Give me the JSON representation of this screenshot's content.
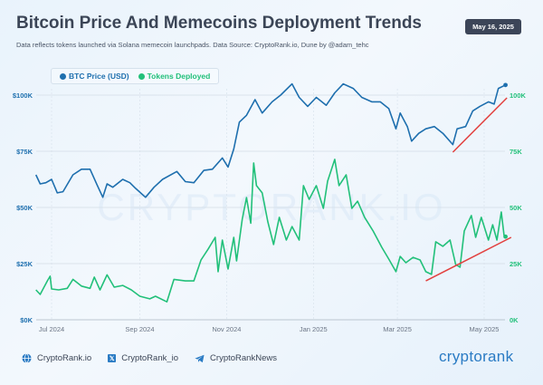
{
  "header": {
    "title": "Bitcoin Price And Memecoins Deployment Trends",
    "subtitle": "Data reflects tokens launched via Solana memecoin launchpads. Data Source: CryptoRank.io, Dune by @adam_tehc",
    "date": "May 16, 2025"
  },
  "watermark": "CRYPTORANK.IO",
  "footer": {
    "website": "CryptoRank.io",
    "x_handle": "CryptoRank_io",
    "telegram": "CryptoRankNews",
    "logo": "cryptorank",
    "icons": [
      "globe-icon",
      "x-icon",
      "telegram-icon"
    ]
  },
  "colors": {
    "btc": "#1e6fae",
    "tokens": "#22c07a",
    "trend": "#e2413f",
    "accent": "#2a7bc4"
  },
  "chart_data": {
    "type": "line",
    "title": "Bitcoin Price And Memecoins Deployment Trends",
    "legend_position": "top-left",
    "grid": true,
    "x_ticks": [
      "Jul 2024",
      "Sep 2024",
      "Nov 2024",
      "Jan 2025",
      "Mar 2025",
      "May 2025"
    ],
    "x_tick_dates": [
      "2024-07-01",
      "2024-09-01",
      "2024-11-01",
      "2025-01-01",
      "2025-03-01",
      "2025-05-01"
    ],
    "y_left": {
      "ticks": [
        "$0K",
        "$25K",
        "$50K",
        "$75K",
        "$100K"
      ],
      "range": [
        0,
        100000
      ]
    },
    "y_right": {
      "ticks": [
        "0K",
        "25K",
        "50K",
        "75K",
        "100K"
      ],
      "range": [
        0,
        100000
      ]
    },
    "series": [
      {
        "name": "BTC Price (USD)",
        "axis": "left",
        "unit": "thousands USD",
        "points": [
          [
            "2024-06-20",
            64.5
          ],
          [
            "2024-06-23",
            60.5
          ],
          [
            "2024-06-27",
            61
          ],
          [
            "2024-07-01",
            62.5
          ],
          [
            "2024-07-05",
            56.5
          ],
          [
            "2024-07-09",
            57
          ],
          [
            "2024-07-16",
            64.5
          ],
          [
            "2024-07-22",
            67
          ],
          [
            "2024-07-28",
            67
          ],
          [
            "2024-08-02",
            60
          ],
          [
            "2024-08-06",
            54.5
          ],
          [
            "2024-08-09",
            60.5
          ],
          [
            "2024-08-13",
            59
          ],
          [
            "2024-08-20",
            62.5
          ],
          [
            "2024-08-25",
            61
          ],
          [
            "2024-08-29",
            58.5
          ],
          [
            "2024-09-05",
            54.5
          ],
          [
            "2024-09-11",
            59
          ],
          [
            "2024-09-17",
            62.5
          ],
          [
            "2024-09-27",
            66
          ],
          [
            "2024-10-03",
            61.5
          ],
          [
            "2024-10-09",
            61
          ],
          [
            "2024-10-16",
            66.5
          ],
          [
            "2024-10-22",
            67
          ],
          [
            "2024-10-29",
            72
          ],
          [
            "2024-11-02",
            68
          ],
          [
            "2024-11-06",
            76
          ],
          [
            "2024-11-10",
            88
          ],
          [
            "2024-11-15",
            91
          ],
          [
            "2024-11-21",
            98
          ],
          [
            "2024-11-26",
            92
          ],
          [
            "2024-12-03",
            97
          ],
          [
            "2024-12-09",
            100
          ],
          [
            "2024-12-17",
            105
          ],
          [
            "2024-12-22",
            99
          ],
          [
            "2024-12-28",
            95
          ],
          [
            "2025-01-03",
            99
          ],
          [
            "2025-01-10",
            95.5
          ],
          [
            "2025-01-16",
            101
          ],
          [
            "2025-01-22",
            105
          ],
          [
            "2025-01-29",
            103
          ],
          [
            "2025-02-04",
            99
          ],
          [
            "2025-02-11",
            97
          ],
          [
            "2025-02-17",
            97
          ],
          [
            "2025-02-23",
            94
          ],
          [
            "2025-02-28",
            85
          ],
          [
            "2025-03-03",
            92
          ],
          [
            "2025-03-08",
            86
          ],
          [
            "2025-03-11",
            79.5
          ],
          [
            "2025-03-16",
            83
          ],
          [
            "2025-03-21",
            85
          ],
          [
            "2025-03-27",
            86
          ],
          [
            "2025-04-02",
            83
          ],
          [
            "2025-04-09",
            78
          ],
          [
            "2025-04-12",
            85
          ],
          [
            "2025-04-18",
            86
          ],
          [
            "2025-04-23",
            93
          ],
          [
            "2025-04-28",
            95
          ],
          [
            "2025-05-04",
            97
          ],
          [
            "2025-05-08",
            96
          ],
          [
            "2025-05-11",
            103
          ],
          [
            "2025-05-16",
            104.5
          ]
        ]
      },
      {
        "name": "Tokens Deployed",
        "axis": "right",
        "unit": "thousands",
        "points": [
          [
            "2024-06-20",
            13.3
          ],
          [
            "2024-06-23",
            11.3
          ],
          [
            "2024-06-28",
            17.3
          ],
          [
            "2024-06-30",
            19.4
          ],
          [
            "2024-07-01",
            13.7
          ],
          [
            "2024-07-06",
            13.3
          ],
          [
            "2024-07-12",
            14
          ],
          [
            "2024-07-16",
            18
          ],
          [
            "2024-07-22",
            15
          ],
          [
            "2024-07-28",
            14
          ],
          [
            "2024-07-31",
            19
          ],
          [
            "2024-08-04",
            13.3
          ],
          [
            "2024-08-09",
            20
          ],
          [
            "2024-08-14",
            14.5
          ],
          [
            "2024-08-20",
            15.3
          ],
          [
            "2024-08-26",
            13.3
          ],
          [
            "2024-09-01",
            10.5
          ],
          [
            "2024-09-08",
            9.3
          ],
          [
            "2024-09-12",
            10.5
          ],
          [
            "2024-09-20",
            8
          ],
          [
            "2024-09-25",
            18
          ],
          [
            "2024-10-03",
            17.3
          ],
          [
            "2024-10-09",
            17.3
          ],
          [
            "2024-10-14",
            26.6
          ],
          [
            "2024-10-19",
            31.5
          ],
          [
            "2024-10-24",
            36.7
          ],
          [
            "2024-10-26",
            21.4
          ],
          [
            "2024-10-29",
            35.5
          ],
          [
            "2024-11-02",
            22.6
          ],
          [
            "2024-11-06",
            36.7
          ],
          [
            "2024-11-08",
            26.2
          ],
          [
            "2024-11-12",
            44.8
          ],
          [
            "2024-11-15",
            54.4
          ],
          [
            "2024-11-18",
            43
          ],
          [
            "2024-11-20",
            69.8
          ],
          [
            "2024-11-22",
            59.7
          ],
          [
            "2024-11-26",
            56.5
          ],
          [
            "2024-11-30",
            43.5
          ],
          [
            "2024-12-04",
            33.5
          ],
          [
            "2024-12-08",
            45.6
          ],
          [
            "2024-12-13",
            35.5
          ],
          [
            "2024-12-17",
            41.5
          ],
          [
            "2024-12-22",
            35.5
          ],
          [
            "2024-12-25",
            59.7
          ],
          [
            "2024-12-29",
            53.6
          ],
          [
            "2025-01-03",
            59.7
          ],
          [
            "2025-01-08",
            49.6
          ],
          [
            "2025-01-11",
            61.7
          ],
          [
            "2025-01-16",
            71.4
          ],
          [
            "2025-01-19",
            59.7
          ],
          [
            "2025-01-24",
            64.5
          ],
          [
            "2025-01-28",
            49.6
          ],
          [
            "2025-02-01",
            52.8
          ],
          [
            "2025-02-06",
            45.6
          ],
          [
            "2025-02-12",
            39.5
          ],
          [
            "2025-02-18",
            32.3
          ],
          [
            "2025-02-23",
            27
          ],
          [
            "2025-02-28",
            21.4
          ],
          [
            "2025-03-03",
            28.2
          ],
          [
            "2025-03-07",
            25.4
          ],
          [
            "2025-03-12",
            27.8
          ],
          [
            "2025-03-17",
            26.6
          ],
          [
            "2025-03-21",
            21.4
          ],
          [
            "2025-03-25",
            20.2
          ],
          [
            "2025-03-28",
            34.7
          ],
          [
            "2025-04-02",
            32.7
          ],
          [
            "2025-04-07",
            35.5
          ],
          [
            "2025-04-11",
            24.6
          ],
          [
            "2025-04-14",
            23.4
          ],
          [
            "2025-04-17",
            39.5
          ],
          [
            "2025-04-22",
            46.4
          ],
          [
            "2025-04-25",
            36.7
          ],
          [
            "2025-04-29",
            45.6
          ],
          [
            "2025-05-04",
            35.5
          ],
          [
            "2025-05-07",
            42.3
          ],
          [
            "2025-05-10",
            35.5
          ],
          [
            "2025-05-13",
            48
          ],
          [
            "2025-05-15",
            37.5
          ],
          [
            "2025-05-16",
            37
          ]
        ]
      }
    ],
    "trendlines": [
      {
        "target": "BTC Price (USD)",
        "from": [
          "2025-04-09",
          74.6
        ],
        "to": [
          "2025-05-17",
          98.8
        ]
      },
      {
        "target": "Tokens Deployed",
        "from": [
          "2025-03-21",
          17.3
        ],
        "to": [
          "2025-05-20",
          36.7
        ]
      }
    ]
  }
}
